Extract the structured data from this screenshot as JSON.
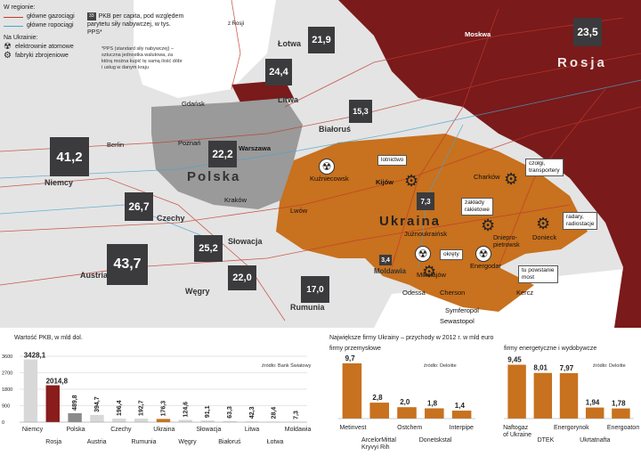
{
  "legend": {
    "header": "W regionie:",
    "gas": "główne gazociągi",
    "oil": "główne ropociągi",
    "ukraine_header": "Na Ukrainie:",
    "nuclear": "elektrownie atomowe",
    "arms": "fabryki zbrojeniowe",
    "gas_color": "#c0392b",
    "oil_color": "#4aa3d0",
    "pkb_box": "33",
    "pkb_text": "PKB per capita, pod względem parytetu siły nabywczej, w tys. PPS*",
    "pps_note": "*PPS (standard siły nabywczej) – sztuczna jednostka walutowa, za którą można kupić tę samą ilość dóbr i usług w danym kraju",
    "from_russia": "z Rosji"
  },
  "colors": {
    "russia": "#7a1a1a",
    "ukraine": "#c8711e",
    "poland": "#9a9a9a",
    "neighbours": "#d8d8d8",
    "sea": "#ffffff",
    "gdp_box": "#3b3b3d"
  },
  "countries": {
    "rosja": "Rosja",
    "polska": "Polska",
    "ukraina": "Ukraina",
    "niemcy": "Niemcy",
    "czechy": "Czechy",
    "slowacja": "Słowacja",
    "austria": "Austria",
    "wegry": "Węgry",
    "rumunia": "Rumunia",
    "litwa": "Litwa",
    "lotwa": "Łotwa",
    "bialorus": "Białoruś",
    "moldawia": "Moldawia"
  },
  "gdp_boxes": {
    "niemcy": "41,2",
    "polska": "22,2",
    "czechy": "26,7",
    "slowacja": "25,2",
    "austria": "43,7",
    "wegry": "22,0",
    "rumunia": "17,0",
    "litwa": "24,4",
    "lotwa": "21,9",
    "bialorus": "15,3",
    "rosja": "23,5",
    "ukraina": "7,3",
    "moldawia": "3,4"
  },
  "cities": {
    "moskwa": "Moskwa",
    "gdansk": "Gdańsk",
    "berlin": "Berlin",
    "poznan": "Poznań",
    "warszawa": "Warszawa",
    "krakow": "Kraków",
    "lwow": "Lwów",
    "kijow": "Kijów",
    "charkow": "Charków",
    "kuzniecowsk": "Kuźniecowsk",
    "juznoukrainsk": "Jużnoukraińsk",
    "dniepro": "Dniepro-\npietrowsk",
    "donieck": "Donieck",
    "energodar": "Energodar",
    "mikolajow": "Mikołajów",
    "odessa": "Odessa",
    "cherson": "Cherson",
    "kercz": "Kercz",
    "symferopol": "Symferopol",
    "sewastopol": "Sewastopol"
  },
  "callouts": {
    "lotnictwo": "lotnictwo",
    "czolgi": "czołgi,\ntransportery",
    "rakiety": "zakłady\nrakietowe",
    "radary": "radary,\nradiostacje",
    "okrety": "okręty",
    "most": "tu powstanie\nmost"
  },
  "chart1": {
    "title": "Wartość PKB, w mld dol.",
    "source": "źródło: Bank Światowy",
    "yticks": [
      "3600",
      "2700",
      "1800",
      "900",
      "0"
    ]
  },
  "chart2": {
    "title": "Największe firmy Ukrainy – przychody w 2012 r. w mld euro",
    "sub": "firmy przemysłowe",
    "source": "źródło: Deloitte"
  },
  "chart3": {
    "sub": "firmy energetyczne i wydobywcze",
    "source": "źródło: Deloitte"
  },
  "chart_data": [
    {
      "type": "bar",
      "title": "Wartość PKB, w mld dol.",
      "categories": [
        "Niemcy",
        "Rosja",
        "Polska",
        "Austria",
        "Czechy",
        "Rumunia",
        "Ukraina",
        "Węgry",
        "Słowacja",
        "Białoruś",
        "Litwa",
        "Łotwa",
        "Moldawia"
      ],
      "values": [
        3428.1,
        2014.8,
        489.8,
        394.7,
        196.4,
        192.7,
        176.3,
        124.6,
        91.1,
        63.3,
        42.3,
        28.4,
        7.3
      ],
      "value_labels": [
        "3428,1",
        "2014,8",
        "489,8",
        "394,7",
        "196,4",
        "192,7",
        "176,3",
        "124,6",
        "91,1",
        "63,3",
        "42,3",
        "28,4",
        "7,3"
      ],
      "ylim": [
        0,
        3600
      ],
      "yticks": [
        0,
        900,
        1800,
        2700,
        3600
      ],
      "highlight": {
        "Rosja": "#8a1c1c",
        "Polska": "#8a8a8a",
        "Ukraina": "#c8711e"
      },
      "default_color": "#d8d8d8"
    },
    {
      "type": "bar",
      "title": "firmy przemysłowe",
      "categories": [
        "Metinvest",
        "ArcelorMittal\nKryvyi Rih",
        "Ostchem",
        "Donetskstal",
        "Interpipe"
      ],
      "values": [
        9.7,
        2.8,
        2.0,
        1.8,
        1.4
      ],
      "value_labels": [
        "9,7",
        "2,8",
        "2,0",
        "1,8",
        "1,4"
      ],
      "color": "#c8711e"
    },
    {
      "type": "bar",
      "title": "firmy energetyczne i wydobywcze",
      "categories": [
        "Naftogaz\nof Ukraine",
        "DTEK",
        "Energorynok",
        "Ukrtatnafta",
        "Energoatom"
      ],
      "values": [
        9.45,
        8.01,
        7.97,
        1.94,
        1.78
      ],
      "value_labels": [
        "9,45",
        "8,01",
        "7,97",
        "1,94",
        "1,78"
      ],
      "color": "#c8711e"
    }
  ]
}
